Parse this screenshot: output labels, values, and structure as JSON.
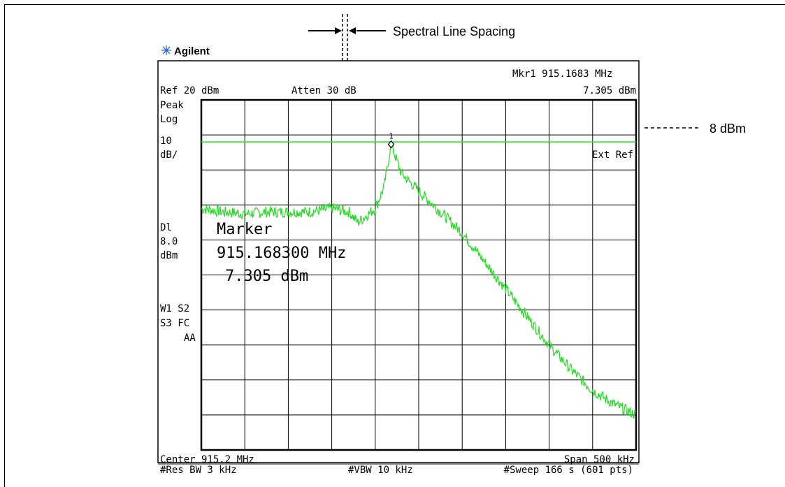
{
  "annotations": {
    "spectral_line_spacing": "Spectral Line Spacing",
    "ref_level_callout": "8 dBm"
  },
  "brand": {
    "name": "Agilent",
    "logo_icon": "agilent-spark-icon"
  },
  "instrument": {
    "marker_header": "Mkr1  915.1683 MHz",
    "marker_header_amp": "7.305 dBm",
    "ref_level": "Ref 20 dBm",
    "attenuation": "Atten 30 dB",
    "left_labels": [
      "Peak",
      "Log",
      "10",
      "dB/"
    ],
    "display_line_labels": [
      "Dl",
      "8.0",
      "dBm"
    ],
    "trace_labels": [
      "W1  S2",
      "S3  FC",
      "AA"
    ],
    "ext_ref": "Ext Ref",
    "marker_number": "1",
    "center": "Center 915.2 MHz",
    "span": "Span 500 kHz",
    "res_bw": "#Res BW 3 kHz",
    "vbw": "#VBW 10 kHz",
    "sweep": "#Sweep 166 s (601 pts)"
  },
  "marker_readout": {
    "title": "Marker",
    "frequency": "915.168300 MHz",
    "amplitude": "7.305 dBm"
  },
  "chart_data": {
    "type": "line",
    "x_unit": "MHz",
    "y_unit": "dBm",
    "xlim": [
      914.95,
      915.45
    ],
    "ylim": [
      -80,
      20
    ],
    "grid": true,
    "display_line": 8.0,
    "marker": {
      "x": 915.1683,
      "y": 7.305
    },
    "series": [
      {
        "color": "#22dd22",
        "x": [
          914.95,
          914.975,
          915.0,
          915.025,
          915.05,
          915.075,
          915.1,
          915.12,
          915.13,
          915.14,
          915.15,
          915.16,
          915.1683,
          915.18,
          915.2,
          915.225,
          915.25,
          915.275,
          915.3,
          915.325,
          915.35,
          915.375,
          915.4,
          915.425,
          915.45
        ],
        "y": [
          -11,
          -12,
          -12.5,
          -12,
          -12,
          -12,
          -11,
          -12,
          -15,
          -13,
          -11,
          -5,
          7.305,
          -1,
          -6,
          -12,
          -18,
          -26,
          -34,
          -42,
          -50,
          -57,
          -63,
          -67,
          -70
        ]
      }
    ]
  }
}
